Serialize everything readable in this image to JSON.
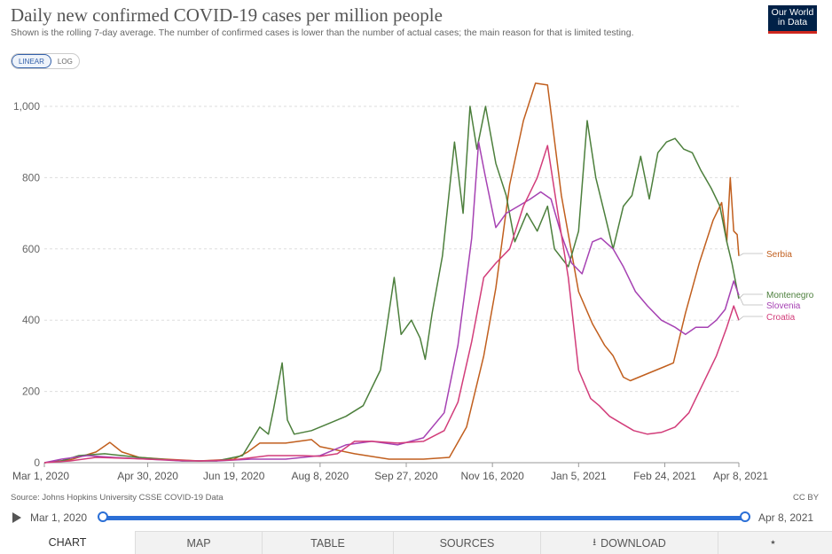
{
  "header": {
    "title": "Daily new confirmed COVID-19 cases per million people",
    "subtitle": "Shown is the rolling 7-day average. The number of confirmed cases is lower than the number of actual cases; the main reason for that is limited testing.",
    "logo_line1": "Our World",
    "logo_line2": "in Data"
  },
  "scale_toggle": {
    "linear": "LINEAR",
    "log": "LOG",
    "selected": "LINEAR"
  },
  "footer": {
    "source": "Source: Johns Hopkins University CSSE COVID-19 Data",
    "license": "CC BY"
  },
  "timeline": {
    "start": "Mar 1, 2020",
    "end": "Apr 8, 2021"
  },
  "tabs": [
    "CHART",
    "MAP",
    "TABLE",
    "SOURCES",
    "DOWNLOAD",
    ""
  ],
  "icons": {
    "play": "play-icon",
    "download": "download-icon",
    "share": "share-icon"
  },
  "chart_data": {
    "type": "line",
    "title": "Daily new confirmed COVID-19 cases per million people",
    "x_tick_labels": [
      "Mar 1, 2020",
      "Apr 30, 2020",
      "Jun 19, 2020",
      "Aug 8, 2020",
      "Sep 27, 2020",
      "Nov 16, 2020",
      "Jan 5, 2021",
      "Feb 24, 2021",
      "Apr 8, 2021"
    ],
    "x_tick_days": [
      0,
      60,
      110,
      160,
      210,
      260,
      310,
      360,
      403
    ],
    "x_range_days": [
      0,
      403
    ],
    "y_ticks": [
      0,
      200,
      400,
      600,
      800,
      1000
    ],
    "y_tick_labels": [
      "0",
      "200",
      "400",
      "600",
      "800",
      "1,000"
    ],
    "ylim": [
      0,
      1000
    ],
    "grid": "horizontal dashed",
    "legend": "right end labels",
    "series": [
      {
        "name": "Serbia",
        "color": "#c15f1e",
        "points": [
          [
            0,
            0
          ],
          [
            15,
            8
          ],
          [
            30,
            30
          ],
          [
            38,
            57
          ],
          [
            45,
            30
          ],
          [
            55,
            15
          ],
          [
            70,
            10
          ],
          [
            90,
            5
          ],
          [
            110,
            10
          ],
          [
            118,
            30
          ],
          [
            125,
            55
          ],
          [
            140,
            55
          ],
          [
            155,
            65
          ],
          [
            160,
            45
          ],
          [
            180,
            25
          ],
          [
            200,
            10
          ],
          [
            220,
            10
          ],
          [
            235,
            15
          ],
          [
            245,
            100
          ],
          [
            255,
            300
          ],
          [
            262,
            490
          ],
          [
            270,
            780
          ],
          [
            278,
            960
          ],
          [
            285,
            1065
          ],
          [
            292,
            1060
          ],
          [
            300,
            750
          ],
          [
            310,
            480
          ],
          [
            318,
            390
          ],
          [
            325,
            330
          ],
          [
            330,
            300
          ],
          [
            336,
            240
          ],
          [
            340,
            230
          ],
          [
            350,
            250
          ],
          [
            360,
            270
          ],
          [
            365,
            280
          ],
          [
            372,
            420
          ],
          [
            380,
            560
          ],
          [
            388,
            680
          ],
          [
            393,
            730
          ],
          [
            396,
            620
          ],
          [
            398,
            800
          ],
          [
            400,
            650
          ],
          [
            402,
            640
          ],
          [
            403,
            580
          ]
        ]
      },
      {
        "name": "Montenegro",
        "color": "#4c7f3c",
        "points": [
          [
            0,
            0
          ],
          [
            10,
            5
          ],
          [
            20,
            20
          ],
          [
            35,
            25
          ],
          [
            55,
            15
          ],
          [
            80,
            5
          ],
          [
            100,
            5
          ],
          [
            115,
            20
          ],
          [
            120,
            60
          ],
          [
            125,
            100
          ],
          [
            130,
            80
          ],
          [
            133,
            150
          ],
          [
            138,
            280
          ],
          [
            141,
            120
          ],
          [
            145,
            80
          ],
          [
            155,
            90
          ],
          [
            165,
            110
          ],
          [
            175,
            130
          ],
          [
            185,
            160
          ],
          [
            195,
            260
          ],
          [
            203,
            520
          ],
          [
            207,
            360
          ],
          [
            213,
            400
          ],
          [
            218,
            350
          ],
          [
            221,
            290
          ],
          [
            225,
            420
          ],
          [
            231,
            580
          ],
          [
            238,
            900
          ],
          [
            243,
            700
          ],
          [
            247,
            1000
          ],
          [
            251,
            880
          ],
          [
            256,
            1000
          ],
          [
            262,
            840
          ],
          [
            268,
            750
          ],
          [
            273,
            620
          ],
          [
            280,
            700
          ],
          [
            286,
            650
          ],
          [
            292,
            720
          ],
          [
            296,
            600
          ],
          [
            304,
            550
          ],
          [
            310,
            650
          ],
          [
            315,
            960
          ],
          [
            320,
            800
          ],
          [
            325,
            700
          ],
          [
            330,
            600
          ],
          [
            336,
            720
          ],
          [
            341,
            750
          ],
          [
            346,
            860
          ],
          [
            351,
            740
          ],
          [
            356,
            870
          ],
          [
            361,
            900
          ],
          [
            366,
            910
          ],
          [
            371,
            880
          ],
          [
            376,
            870
          ],
          [
            381,
            820
          ],
          [
            387,
            770
          ],
          [
            392,
            720
          ],
          [
            396,
            620
          ],
          [
            399,
            560
          ],
          [
            403,
            460
          ]
        ]
      },
      {
        "name": "Slovenia",
        "color": "#a642b3",
        "points": [
          [
            0,
            0
          ],
          [
            10,
            10
          ],
          [
            25,
            20
          ],
          [
            40,
            15
          ],
          [
            60,
            10
          ],
          [
            80,
            5
          ],
          [
            100,
            5
          ],
          [
            120,
            10
          ],
          [
            140,
            10
          ],
          [
            160,
            20
          ],
          [
            175,
            50
          ],
          [
            190,
            60
          ],
          [
            205,
            50
          ],
          [
            220,
            70
          ],
          [
            232,
            140
          ],
          [
            240,
            330
          ],
          [
            248,
            630
          ],
          [
            252,
            900
          ],
          [
            256,
            800
          ],
          [
            262,
            660
          ],
          [
            268,
            700
          ],
          [
            275,
            720
          ],
          [
            282,
            740
          ],
          [
            288,
            760
          ],
          [
            294,
            740
          ],
          [
            300,
            640
          ],
          [
            306,
            560
          ],
          [
            312,
            530
          ],
          [
            318,
            620
          ],
          [
            323,
            630
          ],
          [
            330,
            600
          ],
          [
            336,
            550
          ],
          [
            343,
            480
          ],
          [
            350,
            440
          ],
          [
            358,
            400
          ],
          [
            366,
            380
          ],
          [
            372,
            360
          ],
          [
            378,
            380
          ],
          [
            385,
            380
          ],
          [
            390,
            400
          ],
          [
            395,
            430
          ],
          [
            400,
            510
          ],
          [
            403,
            470
          ]
        ]
      },
      {
        "name": "Croatia",
        "color": "#d23d7a",
        "points": [
          [
            0,
            0
          ],
          [
            15,
            5
          ],
          [
            30,
            15
          ],
          [
            50,
            12
          ],
          [
            70,
            8
          ],
          [
            90,
            5
          ],
          [
            110,
            8
          ],
          [
            130,
            20
          ],
          [
            150,
            20
          ],
          [
            160,
            18
          ],
          [
            170,
            25
          ],
          [
            180,
            60
          ],
          [
            190,
            60
          ],
          [
            205,
            55
          ],
          [
            220,
            60
          ],
          [
            232,
            90
          ],
          [
            240,
            170
          ],
          [
            248,
            340
          ],
          [
            255,
            520
          ],
          [
            262,
            560
          ],
          [
            270,
            600
          ],
          [
            278,
            720
          ],
          [
            286,
            800
          ],
          [
            292,
            890
          ],
          [
            298,
            700
          ],
          [
            304,
            520
          ],
          [
            310,
            260
          ],
          [
            317,
            180
          ],
          [
            322,
            160
          ],
          [
            328,
            130
          ],
          [
            335,
            110
          ],
          [
            342,
            90
          ],
          [
            350,
            80
          ],
          [
            358,
            85
          ],
          [
            366,
            100
          ],
          [
            374,
            140
          ],
          [
            382,
            220
          ],
          [
            390,
            300
          ],
          [
            396,
            380
          ],
          [
            400,
            440
          ],
          [
            403,
            400
          ]
        ]
      }
    ]
  }
}
